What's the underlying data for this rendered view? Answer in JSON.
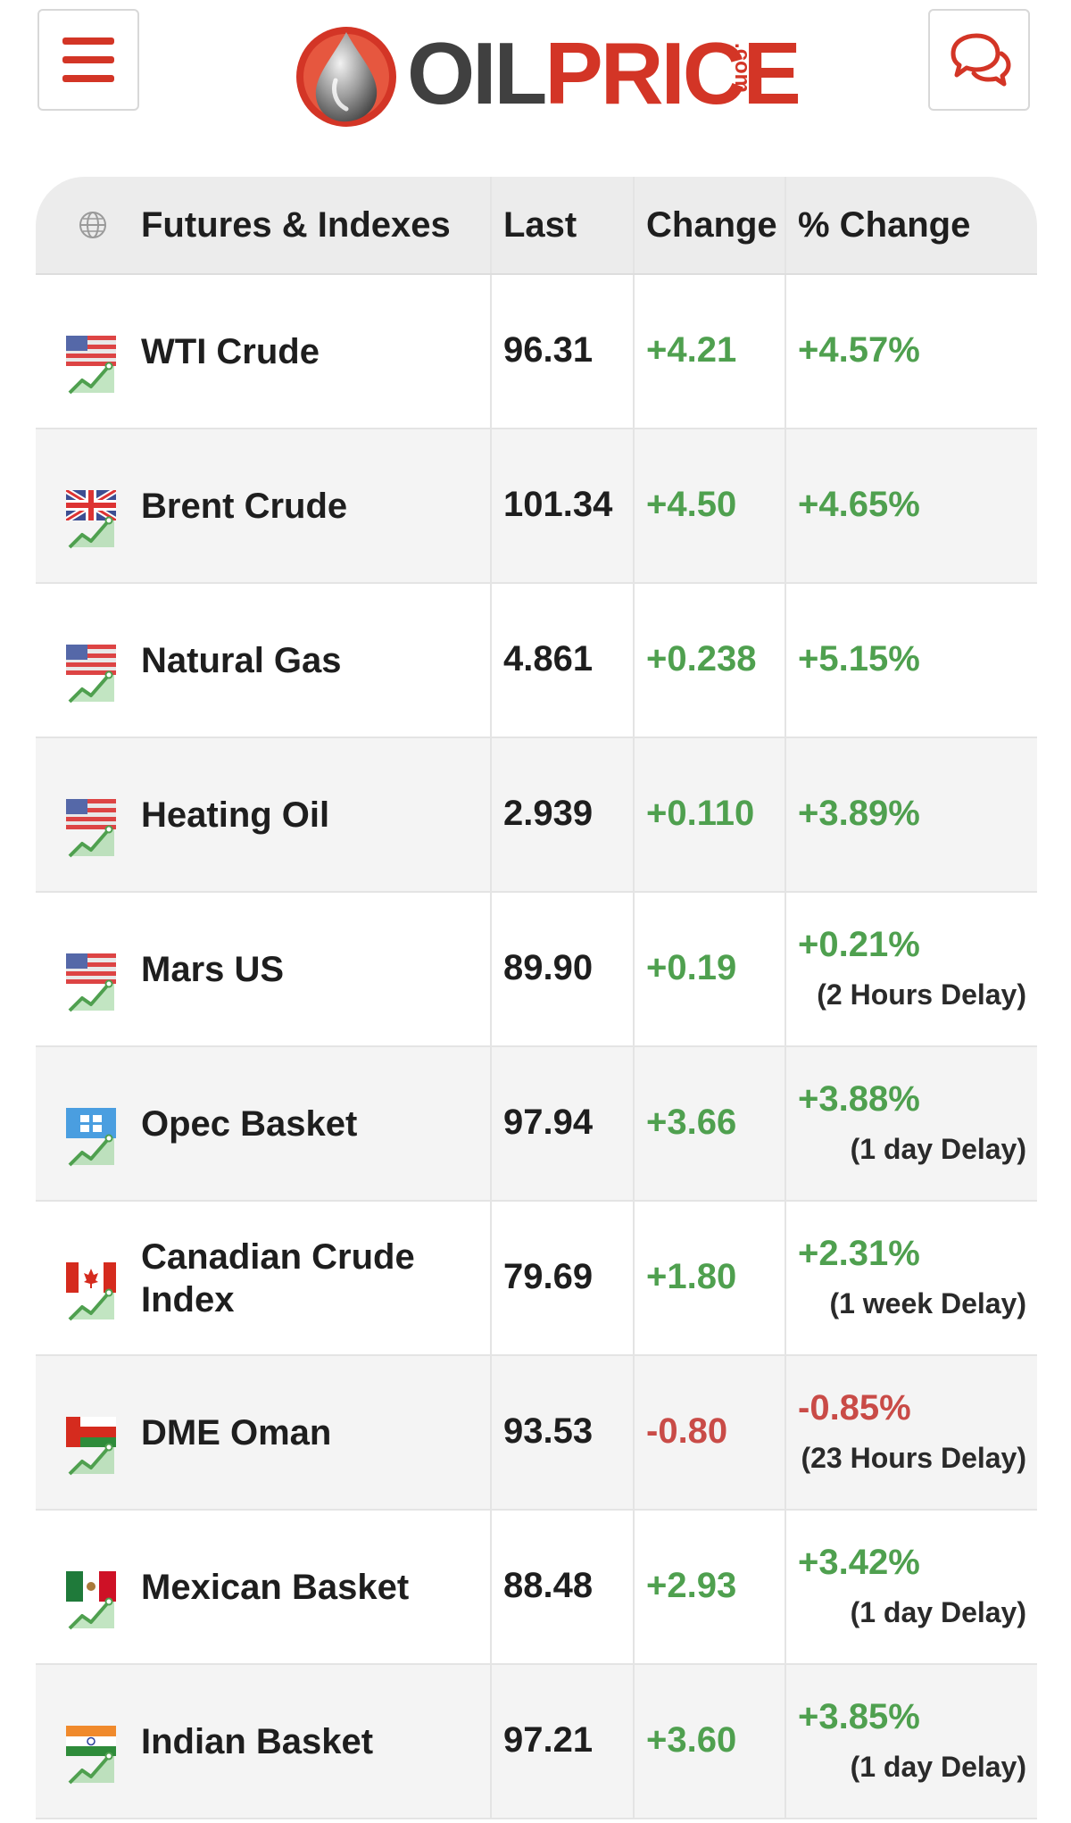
{
  "header": {
    "logo_oil": "OIL",
    "logo_price": "PRICE",
    "logo_com": ".com"
  },
  "table": {
    "headers": {
      "name": "Futures & Indexes",
      "last": "Last",
      "change": "Change",
      "pct_change": "% Change"
    },
    "rows": [
      {
        "flag": "us-flag",
        "name": "WTI Crude",
        "last": "96.31",
        "change": "+4.21",
        "pct": "+4.57%",
        "delay": "",
        "direction": "up"
      },
      {
        "flag": "uk-flag",
        "name": "Brent Crude",
        "last": "101.34",
        "change": "+4.50",
        "pct": "+4.65%",
        "delay": "",
        "direction": "up"
      },
      {
        "flag": "us-flag",
        "name": "Natural Gas",
        "last": "4.861",
        "change": "+0.238",
        "pct": "+5.15%",
        "delay": "",
        "direction": "up"
      },
      {
        "flag": "us-flag",
        "name": "Heating Oil",
        "last": "2.939",
        "change": "+0.110",
        "pct": "+3.89%",
        "delay": "",
        "direction": "up"
      },
      {
        "flag": "us-flag",
        "name": "Mars US",
        "last": "89.90",
        "change": "+0.19",
        "pct": "+0.21%",
        "delay": "(2 Hours Delay)",
        "direction": "up"
      },
      {
        "flag": "opec-flag",
        "name": "Opec Basket",
        "last": "97.94",
        "change": "+3.66",
        "pct": "+3.88%",
        "delay": "(1 day Delay)",
        "direction": "up"
      },
      {
        "flag": "canada-flag",
        "name": "Canadian Crude Index",
        "last": "79.69",
        "change": "+1.80",
        "pct": "+2.31%",
        "delay": "(1 week Delay)",
        "direction": "up"
      },
      {
        "flag": "oman-flag",
        "name": "DME Oman",
        "last": "93.53",
        "change": "-0.80",
        "pct": "-0.85%",
        "delay": "(23 Hours Delay)",
        "direction": "down"
      },
      {
        "flag": "mexico-flag",
        "name": "Mexican Basket",
        "last": "88.48",
        "change": "+2.93",
        "pct": "+3.42%",
        "delay": "(1 day Delay)",
        "direction": "up"
      },
      {
        "flag": "india-flag",
        "name": "Indian Basket",
        "last": "97.21",
        "change": "+3.60",
        "pct": "+3.85%",
        "delay": "(1 day Delay)",
        "direction": "up"
      }
    ]
  },
  "colors": {
    "brand_red": "#d33526",
    "positive_green": "#4fa04f",
    "negative_red": "#c94b47"
  }
}
